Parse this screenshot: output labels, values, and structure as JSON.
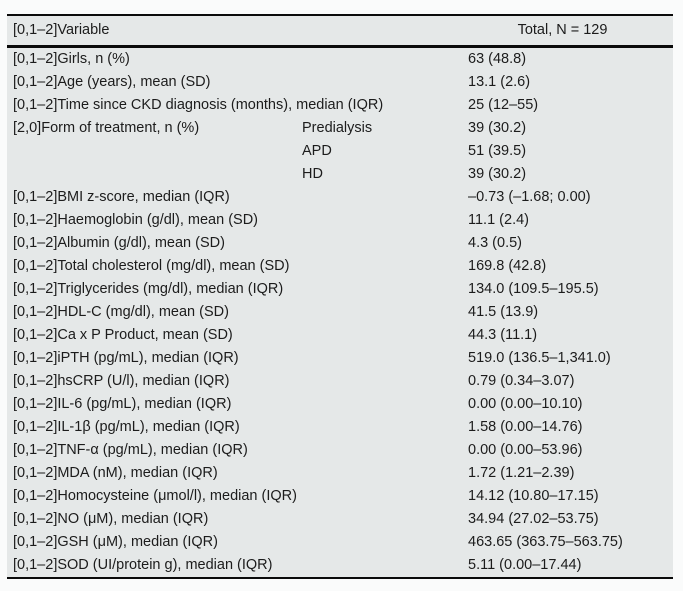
{
  "page": {
    "background_color": "#fafbfb",
    "table_background_color": "#e5e8e8",
    "rule_color": "#0a0a0a",
    "text_color": "#1c1c1c"
  },
  "table": {
    "header": {
      "variable": "[0,1–2]Variable",
      "total": "Total, N = 129"
    },
    "rows": [
      {
        "label": "[0,1–2]Girls, n (%)",
        "sub": "",
        "value": "63 (48.8)"
      },
      {
        "label": "[0,1–2]Age (years), mean (SD)",
        "sub": "",
        "value": "13.1 (2.6)"
      },
      {
        "label": "[0,1–2]Time since CKD diagnosis (months), median (IQR)",
        "sub": "",
        "value": "25 (12–55)"
      },
      {
        "label": "[2,0]Form of treatment, n (%)",
        "sub": "Predialysis",
        "value": "39 (30.2)"
      },
      {
        "label": "",
        "sub": "APD",
        "value": "51 (39.5)"
      },
      {
        "label": "",
        "sub": "HD",
        "value": "39 (30.2)"
      },
      {
        "label": "[0,1–2]BMI z-score, median (IQR)",
        "sub": "",
        "value": "–0.73 (–1.68; 0.00)"
      },
      {
        "label": "[0,1–2]Haemoglobin (g/dl), mean (SD)",
        "sub": "",
        "value": "11.1 (2.4)"
      },
      {
        "label": "[0,1–2]Albumin (g/dl), mean (SD)",
        "sub": "",
        "value": "4.3 (0.5)"
      },
      {
        "label": "[0,1–2]Total cholesterol (mg/dl), mean (SD)",
        "sub": "",
        "value": "169.8 (42.8)"
      },
      {
        "label": "[0,1–2]Triglycerides (mg/dl), median (IQR)",
        "sub": "",
        "value": "134.0 (109.5–195.5)"
      },
      {
        "label": "[0,1–2]HDL-C (mg/dl), mean (SD)",
        "sub": "",
        "value": "41.5 (13.9)"
      },
      {
        "label": "[0,1–2]Ca x P Product, mean (SD)",
        "sub": "",
        "value": "44.3 (11.1)"
      },
      {
        "label": "[0,1–2]iPTH (pg/mL), median (IQR)",
        "sub": "",
        "value": "519.0 (136.5–1,341.0)"
      },
      {
        "label": "[0,1–2]hsCRP (U/l), median (IQR)",
        "sub": "",
        "value": "0.79 (0.34–3.07)"
      },
      {
        "label": "[0,1–2]IL-6 (pg/mL), median (IQR)",
        "sub": "",
        "value": "0.00 (0.00–10.10)"
      },
      {
        "label": "[0,1–2]IL-1β (pg/mL), median (IQR)",
        "sub": "",
        "value": "1.58 (0.00–14.76)"
      },
      {
        "label": "[0,1–2]TNF-α (pg/mL), median (IQR)",
        "sub": "",
        "value": "0.00 (0.00–53.96)"
      },
      {
        "label": "[0,1–2]MDA (nM), median (IQR)",
        "sub": "",
        "value": "1.72 (1.21–2.39)"
      },
      {
        "label": "[0,1–2]Homocysteine (μmol/l), median (IQR)",
        "sub": "",
        "value": "14.12 (10.80–17.15)"
      },
      {
        "label": "[0,1–2]NO (μM), median (IQR)",
        "sub": "",
        "value": "34.94 (27.02–53.75)"
      },
      {
        "label": "[0,1–2]GSH (μM), median (IQR)",
        "sub": "",
        "value": "463.65 (363.75–563.75)"
      },
      {
        "label": "[0,1–2]SOD (UI/protein g), median (IQR)",
        "sub": "",
        "value": "5.11 (0.00–17.44)"
      }
    ]
  }
}
